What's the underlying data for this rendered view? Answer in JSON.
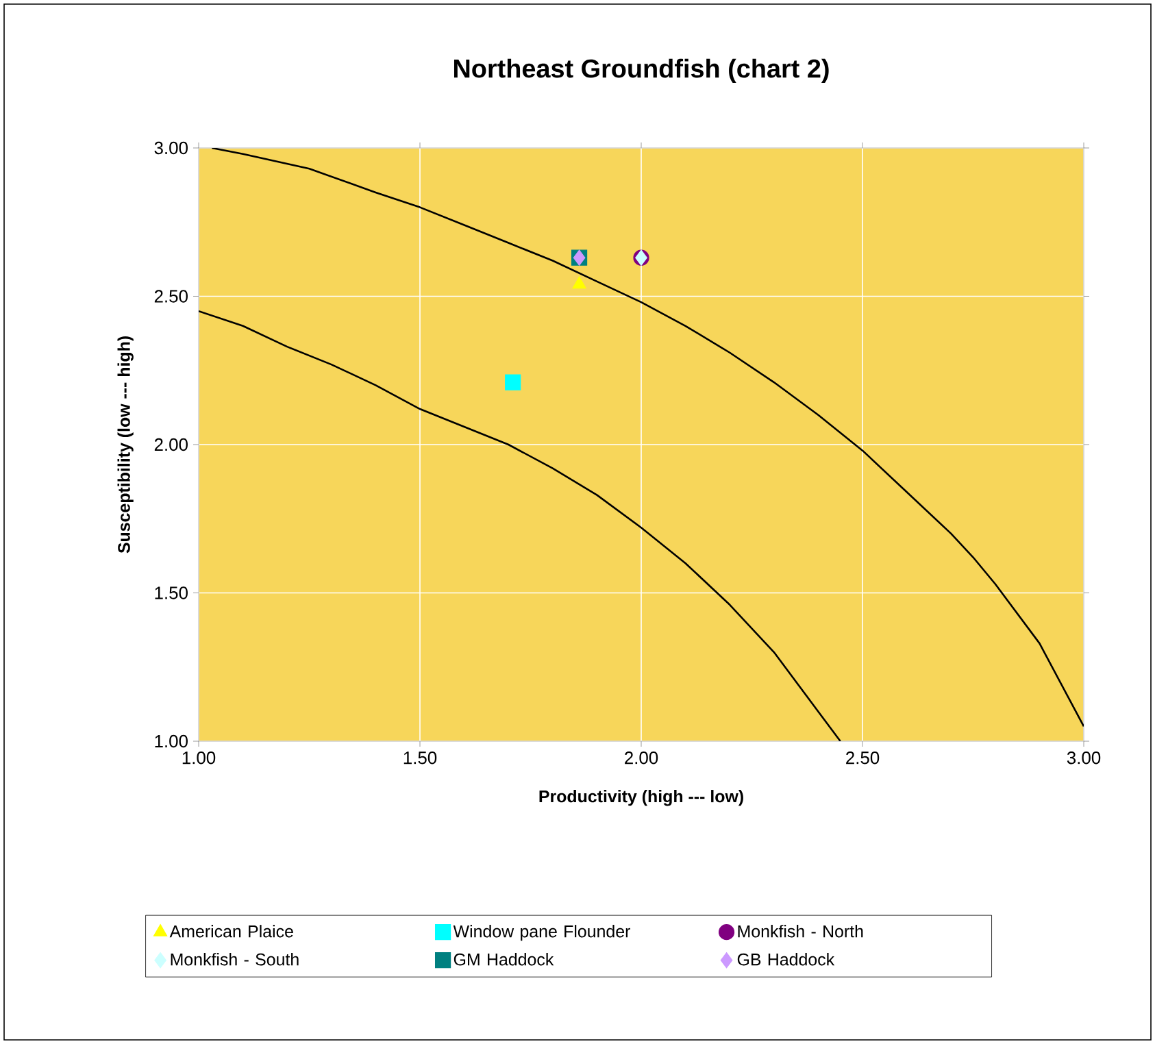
{
  "chart_data": {
    "type": "scatter",
    "title": "Northeast Groundfish (chart 2)",
    "xlabel": "Productivity (high --- low)",
    "ylabel": "Susceptibility (low --- high)",
    "xlim": [
      1,
      3
    ],
    "ylim": [
      1,
      3
    ],
    "xticks": [
      {
        "value": 1,
        "label": "1.00"
      },
      {
        "value": 1.5,
        "label": "1.50"
      },
      {
        "value": 2,
        "label": "2.00"
      },
      {
        "value": 2.5,
        "label": "2.50"
      },
      {
        "value": 3,
        "label": "3.00"
      }
    ],
    "yticks": [
      {
        "value": 1,
        "label": "1.00"
      },
      {
        "value": 1.5,
        "label": "1.50"
      },
      {
        "value": 2,
        "label": "2.00"
      },
      {
        "value": 2.5,
        "label": "2.50"
      },
      {
        "value": 3,
        "label": "3.00"
      }
    ],
    "grid": true,
    "legend": "bottom",
    "series": [
      {
        "type": "line",
        "color": "#000000",
        "marker": "none",
        "x": [
          1.03,
          1.1,
          1.25,
          1.4,
          1.5,
          1.6,
          1.7,
          1.8,
          1.9,
          2.0,
          2.1,
          2.2,
          2.3,
          2.4,
          2.5,
          2.6,
          2.7,
          2.75,
          2.8,
          2.9,
          3.0
        ],
        "values": [
          3.0,
          2.98,
          2.93,
          2.85,
          2.8,
          2.74,
          2.68,
          2.62,
          2.55,
          2.48,
          2.4,
          2.31,
          2.21,
          2.1,
          1.98,
          1.84,
          1.7,
          1.62,
          1.53,
          1.33,
          1.05
        ]
      },
      {
        "type": "line",
        "color": "#000000",
        "marker": "none",
        "x": [
          1.0,
          1.1,
          1.2,
          1.3,
          1.4,
          1.5,
          1.6,
          1.7,
          1.8,
          1.9,
          2.0,
          2.1,
          2.2,
          2.3,
          2.4,
          2.45
        ],
        "values": [
          2.45,
          2.4,
          2.33,
          2.27,
          2.2,
          2.12,
          2.06,
          2.0,
          1.92,
          1.83,
          1.72,
          1.6,
          1.46,
          1.3,
          1.1,
          1.0
        ]
      },
      {
        "name": "American Plaice",
        "color": "#ffff00",
        "marker": "triangle",
        "x": [
          1.86
        ],
        "values": [
          2.54
        ]
      },
      {
        "name": "Window pane Flounder",
        "color": "#00ffff",
        "marker": "square",
        "x": [
          1.71
        ],
        "values": [
          2.21
        ]
      },
      {
        "name": "Monkfish - North",
        "color": "#800080",
        "marker": "circle",
        "x": [
          2.0
        ],
        "values": [
          2.63
        ]
      },
      {
        "name": "Monkfish - South",
        "color": "#ccffff",
        "marker": "diamond",
        "x": [
          2.0
        ],
        "values": [
          2.63
        ]
      },
      {
        "name": "GM Haddock",
        "color": "#008080",
        "marker": "square",
        "x": [
          1.86
        ],
        "values": [
          2.63
        ]
      },
      {
        "name": "GB Haddock",
        "color": "#cc99ff",
        "marker": "diamond",
        "x": [
          1.86
        ],
        "values": [
          2.63
        ]
      }
    ]
  }
}
